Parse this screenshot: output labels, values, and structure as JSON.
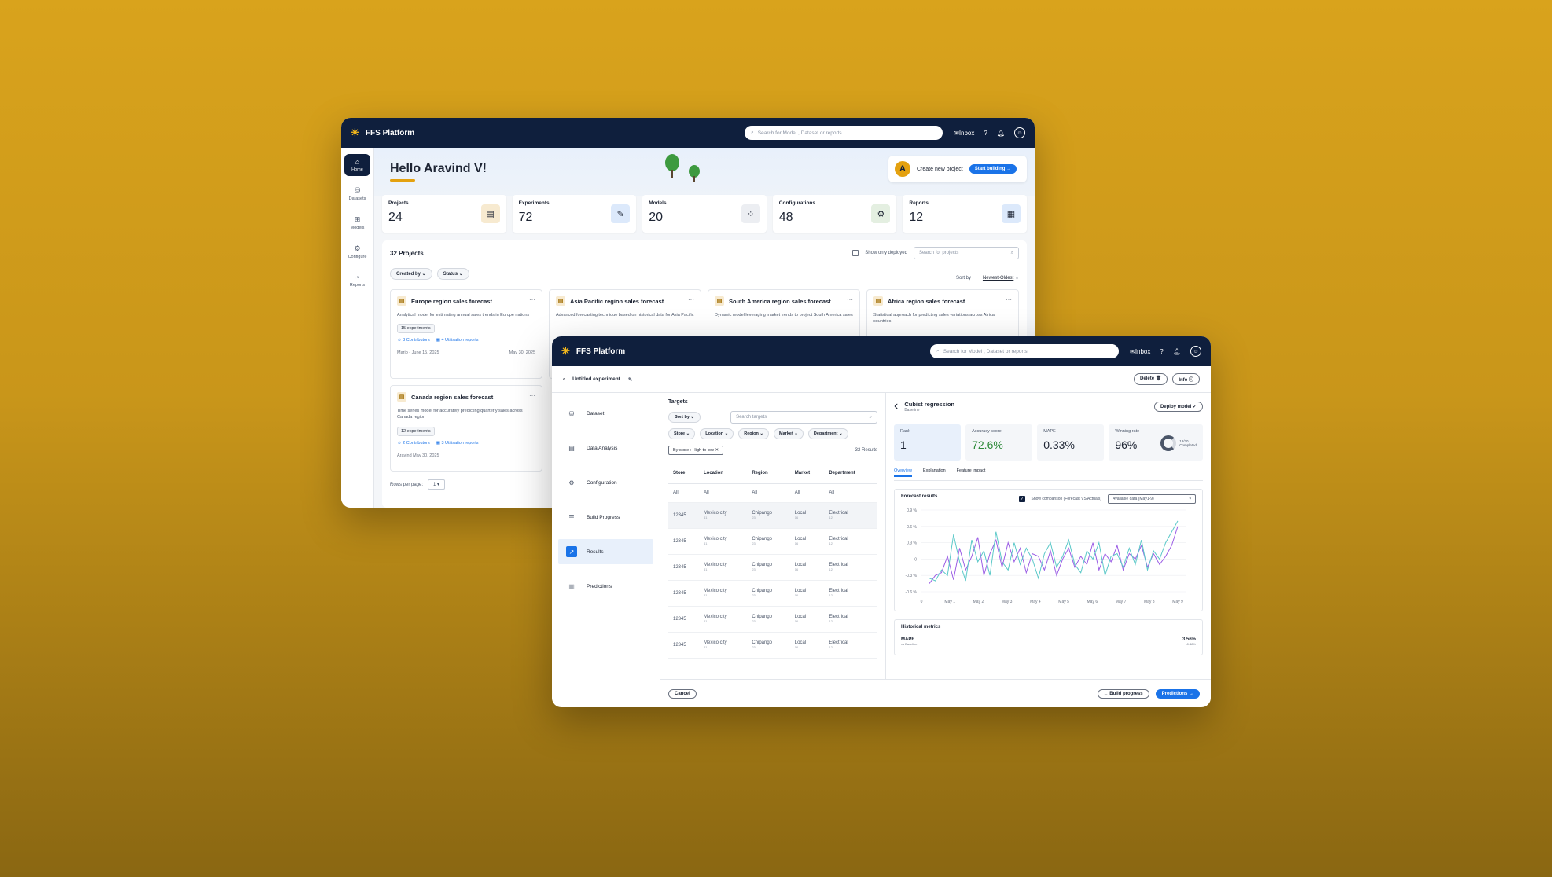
{
  "app": {
    "name": "FFS Platform",
    "search_placeholder": "Search for Model , Dataset or reports",
    "inbox": "Inbox"
  },
  "home": {
    "greeting": "Hello Aravind V!",
    "new_project": {
      "avatar": "A",
      "label": "Create new project",
      "button": "Start building"
    },
    "sidebar": [
      {
        "label": "Home",
        "icon": "home-icon"
      },
      {
        "label": "Datasets",
        "icon": "database-icon"
      },
      {
        "label": "Models",
        "icon": "models-icon"
      },
      {
        "label": "Configure",
        "icon": "gear-icon"
      },
      {
        "label": "Reports",
        "icon": "pie-chart-icon"
      }
    ],
    "stats": [
      {
        "label": "Projects",
        "value": "24",
        "icon": "document-icon",
        "bg": "#f7ead0"
      },
      {
        "label": "Experiments",
        "value": "72",
        "icon": "wrench-icon",
        "bg": "#dce9fb"
      },
      {
        "label": "Models",
        "value": "20",
        "icon": "grid-icon",
        "bg": "#eceef2"
      },
      {
        "label": "Configurations",
        "value": "48",
        "icon": "gear-icon",
        "bg": "#e4efe1"
      },
      {
        "label": "Reports",
        "value": "12",
        "icon": "report-icon",
        "bg": "#dce9fb"
      }
    ],
    "projects_title": "32 Projects",
    "show_deployed": "Show only deployed",
    "project_search_placeholder": "Search for projects",
    "filters": [
      "Created by",
      "Status"
    ],
    "sort_label": "Sort by",
    "sort_value": "Newest-Oldest",
    "cards": [
      {
        "title": "Europe region sales forecast",
        "desc": "Analytical model for estimating annual sales trends in Europe nations",
        "tag": "15 experiments",
        "contrib": "3 Contributors",
        "reports": "4 Utilisation reports",
        "author": "Mario - June 15, 2025",
        "date": "May 30, 2025"
      },
      {
        "title": "Asia Pacific region sales forecast",
        "desc": "Advanced forecasting technique based on historical data for Asia Pacific",
        "tag": "",
        "contrib": "",
        "reports": "",
        "author": "",
        "date": ""
      },
      {
        "title": "South America region sales forecast",
        "desc": "Dynamic model leveraging market trends to project South America sales",
        "tag": "",
        "contrib": "",
        "reports": "",
        "author": "",
        "date": ""
      },
      {
        "title": "Africa region sales forecast",
        "desc": "Statistical approach for predicting sales variations across Africa countries",
        "tag": "",
        "contrib": "",
        "reports": "",
        "author": "",
        "date": ""
      },
      {
        "title": "Canada region sales forecast",
        "desc": "Time series model for accurately predicting quarterly sales across Canada region",
        "tag": "12 experiments",
        "contrib": "2 Contributors",
        "reports": "3 Utilisation reports",
        "author": "Aravind May 30, 2025",
        "date": ""
      }
    ],
    "rows_label": "Rows per page:",
    "rows_value": "1"
  },
  "experiment": {
    "title": "Untitled experiment",
    "delete": "Delete",
    "info": "Info",
    "steps": [
      {
        "label": "Dataset",
        "icon": "database-icon"
      },
      {
        "label": "Data Analysis",
        "icon": "document-icon"
      },
      {
        "label": "Configuration",
        "icon": "gear-icon"
      },
      {
        "label": "Build Progress",
        "icon": "sliders-icon"
      },
      {
        "label": "Results",
        "icon": "chart-icon"
      },
      {
        "label": "Predictions",
        "icon": "table-icon"
      }
    ],
    "targets": {
      "title": "Targets",
      "sort": "Sort by",
      "search_placeholder": "Search targets",
      "filters": [
        "Store",
        "Location",
        "Region",
        "Market",
        "Department"
      ],
      "chip": "By store : High to low",
      "results": "32 Results",
      "columns": [
        "Store",
        "Location",
        "Region",
        "Market",
        "Department"
      ],
      "all_row": [
        "All",
        "All",
        "All",
        "All",
        "All"
      ],
      "rows": [
        [
          "12345",
          "Mexico city",
          "Chipango",
          "Local",
          "Electrical"
        ],
        [
          "12345",
          "Mexico city",
          "Chipango",
          "Local",
          "Electrical"
        ],
        [
          "12345",
          "Mexico city",
          "Chipango",
          "Local",
          "Electrical"
        ],
        [
          "12345",
          "Mexico city",
          "Chipango",
          "Local",
          "Electrical"
        ],
        [
          "12345",
          "Mexico city",
          "Chipango",
          "Local",
          "Electrical"
        ],
        [
          "12345",
          "Mexico city",
          "Chipango",
          "Local",
          "Electrical"
        ]
      ],
      "subs": [
        "",
        "41",
        "23",
        "16",
        "12"
      ]
    },
    "cancel": "Cancel",
    "build_progress": "Build progress",
    "predictions": "Predictions",
    "model": {
      "name": "Cubist regression",
      "sub": "Baseline",
      "deploy": "Deploy model"
    },
    "kpis": [
      {
        "label": "Rank",
        "value": "1"
      },
      {
        "label": "Accuracy score",
        "value": "72.6%"
      },
      {
        "label": "MAPE",
        "value": "0.33%"
      },
      {
        "label": "Winning rate",
        "value": "96%",
        "ring": "18/20",
        "ring_sub": "Completed"
      }
    ],
    "tabs": [
      "Overview",
      "Explanation",
      "Feature impact"
    ],
    "forecast": {
      "title": "Forecast results",
      "comparison": "Show comparison (Forecast VS Actuals)",
      "select": "Available data (May1-9)"
    },
    "historical": {
      "title": "Historical metrics",
      "metric": "MAPE",
      "metric_sub": "vs Baseline",
      "value": "3.56%",
      "delta": "-0.48%"
    }
  },
  "chart_data": {
    "type": "line",
    "title": "Forecast results",
    "x_ticks": [
      "0",
      "May 1",
      "May 2",
      "May 3",
      "May 4",
      "May 5",
      "May 6",
      "May 7",
      "May 8",
      "May 9"
    ],
    "y_ticks": [
      "0.9 %",
      "0.6 %",
      "0.3 %",
      "0",
      "-0.3 %",
      "-0.6 %"
    ],
    "ylim": [
      -0.6,
      0.9
    ],
    "series": [
      {
        "color": "#9b5de5",
        "values": [
          -0.45,
          -0.3,
          -0.25,
          0.05,
          -0.38,
          0.2,
          -0.2,
          0.05,
          0.4,
          -0.3,
          0.1,
          0.35,
          -0.15,
          0.3,
          -0.05,
          0.2,
          -0.25,
          0.1,
          0.05,
          -0.2,
          0.15,
          -0.3,
          0.0,
          0.2,
          -0.15,
          0.05,
          -0.1,
          0.3,
          -0.2,
          0.1,
          -0.05,
          0.25,
          -0.2,
          0.1,
          0.0,
          0.25,
          -0.15,
          0.1,
          -0.1,
          0.05,
          0.25,
          0.6
        ]
      },
      {
        "color": "#5ac8c8",
        "values": [
          -0.35,
          -0.4,
          -0.2,
          -0.3,
          0.45,
          -0.05,
          -0.4,
          0.35,
          -0.05,
          0.15,
          -0.3,
          0.5,
          -0.05,
          -0.2,
          0.3,
          -0.1,
          0.2,
          0.0,
          -0.35,
          0.1,
          0.3,
          -0.15,
          0.05,
          0.35,
          -0.1,
          -0.25,
          0.15,
          0.0,
          0.3,
          -0.3,
          0.05,
          0.1,
          -0.15,
          0.2,
          -0.1,
          0.35,
          -0.2,
          0.15,
          0.0,
          0.3,
          0.5,
          0.7
        ]
      }
    ]
  }
}
